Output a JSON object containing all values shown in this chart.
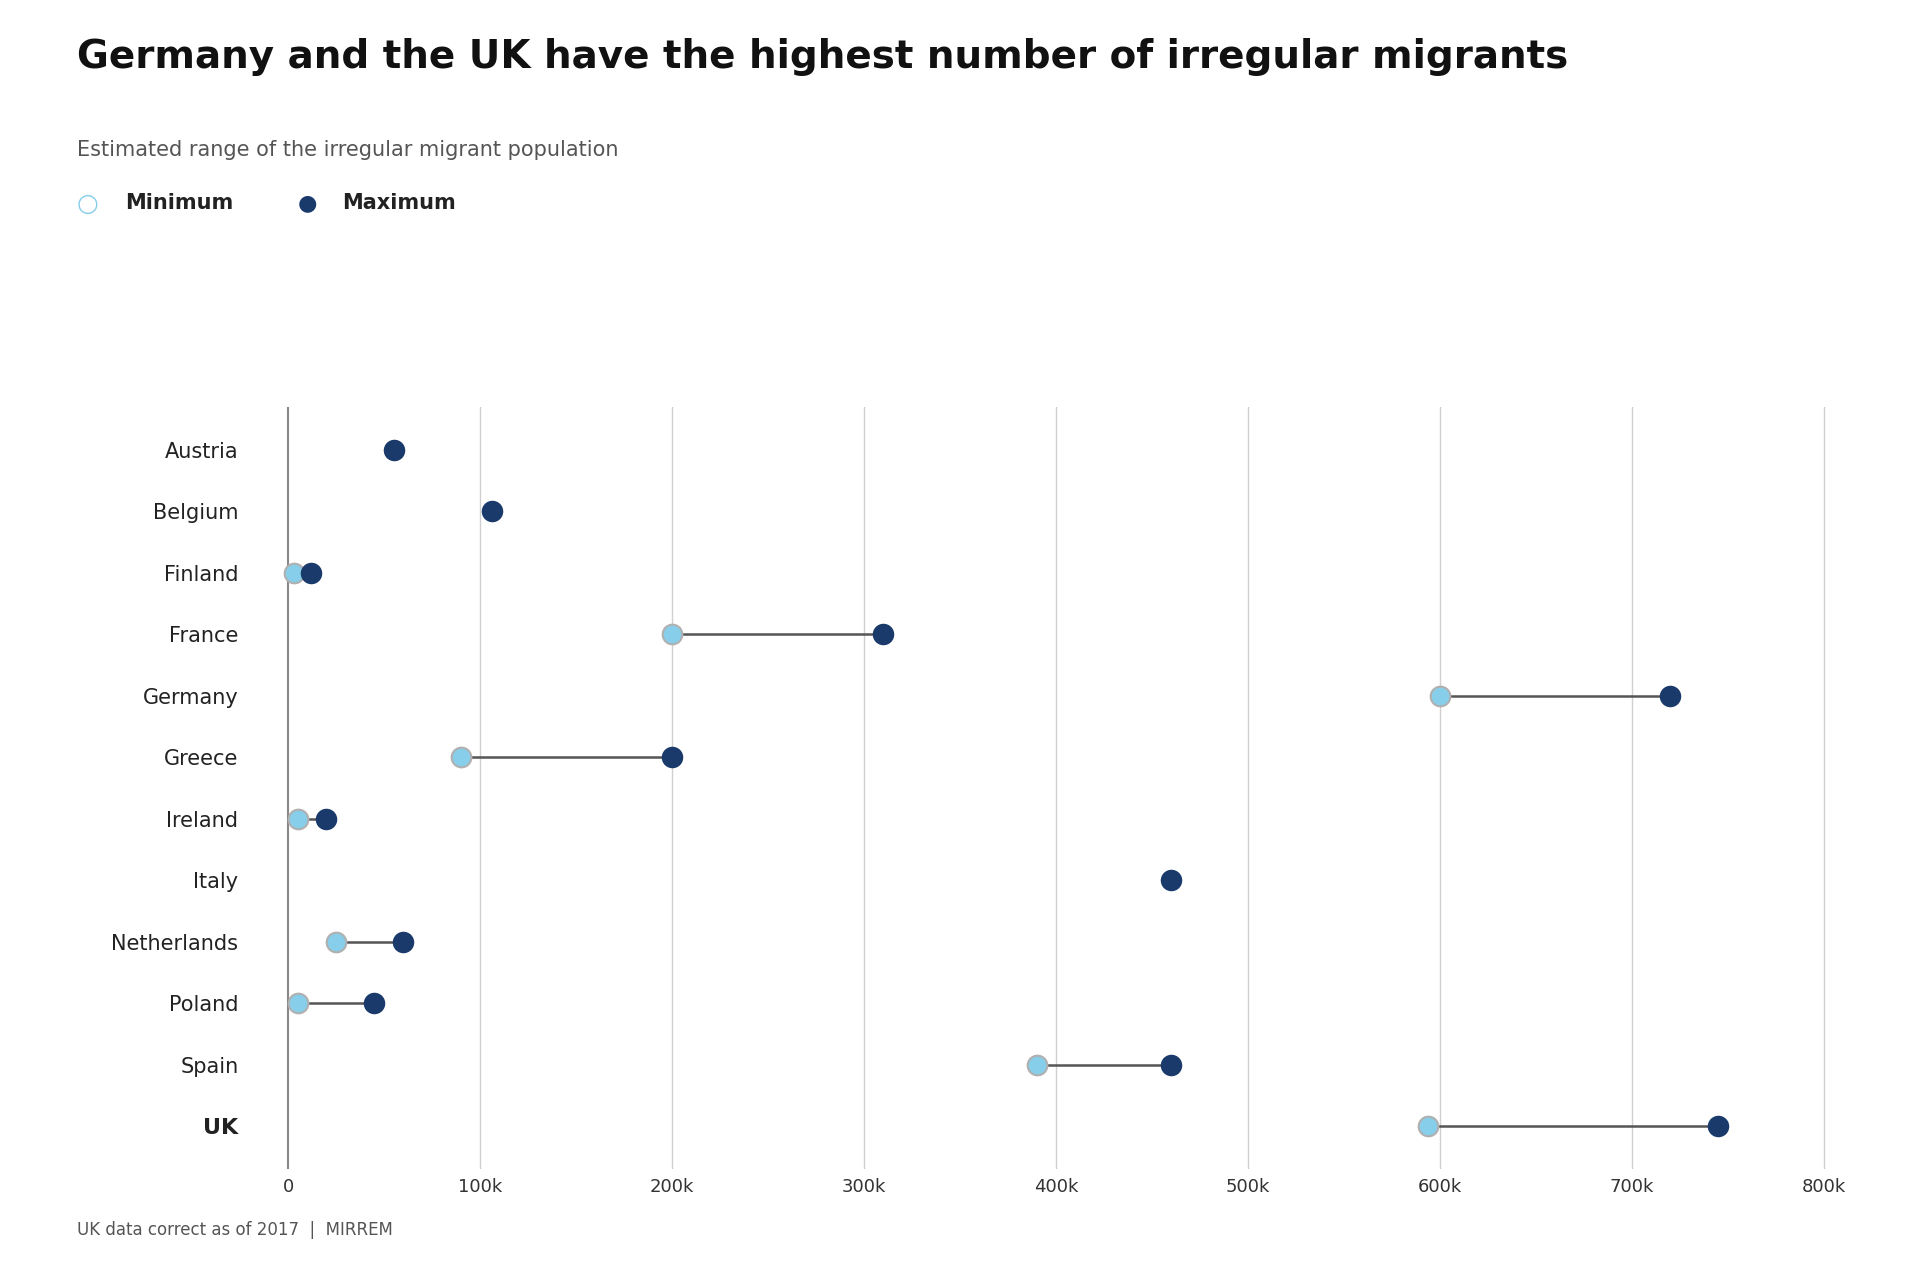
{
  "title": "Germany and the UK have the highest number of irregular migrants",
  "subtitle": "Estimated range of the irregular migrant population",
  "footnote": "UK data correct as of 2017  |  MIRREM",
  "countries": [
    "Austria",
    "Belgium",
    "Finland",
    "France",
    "Germany",
    "Greece",
    "Ireland",
    "Italy",
    "Netherlands",
    "Poland",
    "Spain",
    "UK"
  ],
  "bold_countries": [
    "UK"
  ],
  "min_values": [
    0,
    0,
    3000,
    200000,
    600000,
    90000,
    5000,
    0,
    25000,
    5000,
    390000,
    594000
  ],
  "max_values": [
    55000,
    106000,
    12000,
    310000,
    720000,
    200000,
    20000,
    460000,
    60000,
    45000,
    460000,
    745000
  ],
  "has_min_marker": [
    false,
    false,
    true,
    true,
    true,
    true,
    true,
    false,
    true,
    true,
    true,
    true
  ],
  "color_min": "#87CEEB",
  "color_max": "#1a3a6b",
  "color_line": "#555555",
  "bg_color": "#ffffff",
  "xlim": [
    -20000,
    820000
  ],
  "xticks": [
    0,
    100000,
    200000,
    300000,
    400000,
    500000,
    600000,
    700000,
    800000
  ],
  "xtick_labels": [
    "0",
    "100k",
    "200k",
    "300k",
    "400k",
    "500k",
    "600k",
    "700k",
    "800k"
  ],
  "grid_color": "#d0d0d0",
  "title_fontsize": 28,
  "subtitle_fontsize": 15,
  "legend_fontsize": 15,
  "label_fontsize": 15,
  "tick_fontsize": 13,
  "marker_size_min": 200,
  "marker_size_max": 240,
  "footnote_fontsize": 12
}
